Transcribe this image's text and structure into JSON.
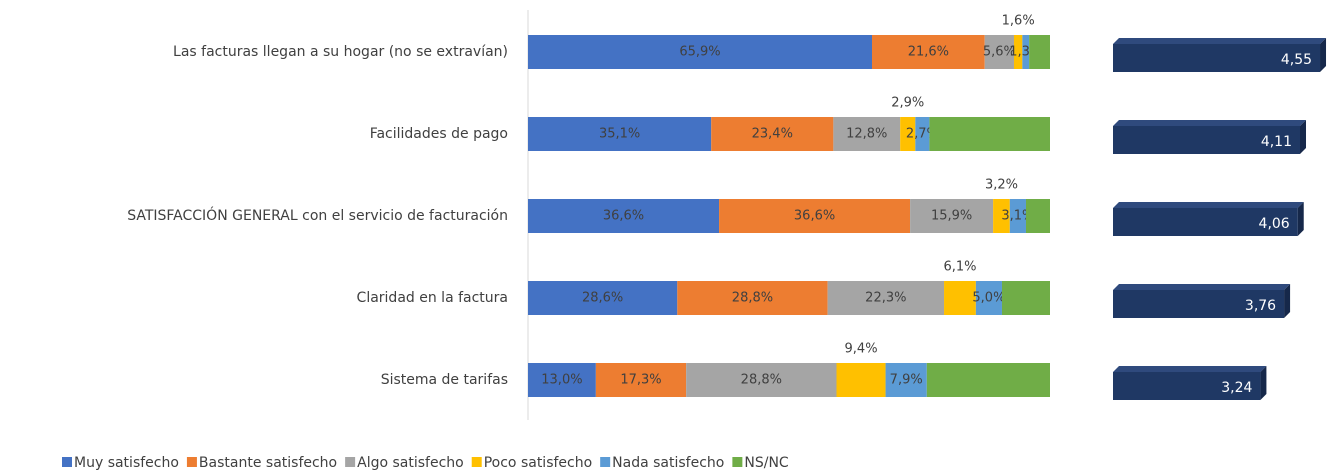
{
  "chart_data": [
    {
      "type": "bar",
      "orientation": "horizontal",
      "stacked": true,
      "categories": [
        "Las facturas llegan a su hogar (no se extravían)",
        "Facilidades de pago",
        "SATISFACCIÓN GENERAL con el servicio de facturación",
        "Claridad en la factura",
        "Sistema de tarifas"
      ],
      "xlim": [
        0,
        100
      ],
      "legend": "bottom",
      "series": [
        {
          "name": "Muy satisfecho",
          "color": "#4472c4",
          "values": [
            65.9,
            35.1,
            36.6,
            28.6,
            13.0
          ],
          "value_labels": [
            "65,9%",
            "35,1%",
            "36,6%",
            "28,6%",
            "13,0%"
          ]
        },
        {
          "name": "Bastante satisfecho",
          "color": "#ed7d31",
          "values": [
            21.6,
            23.4,
            36.6,
            28.8,
            17.3
          ],
          "value_labels": [
            "21,6%",
            "23,4%",
            "36,6%",
            "28,8%",
            "17,3%"
          ]
        },
        {
          "name": "Algo satisfecho",
          "color": "#a5a5a5",
          "values": [
            5.6,
            12.8,
            15.9,
            22.3,
            28.8
          ],
          "value_labels": [
            "5,6%",
            "12,8%",
            "15,9%",
            "22,3%",
            "28,8%"
          ]
        },
        {
          "name": "Poco satisfecho",
          "color": "#ffc000",
          "values": [
            1.6,
            2.9,
            3.2,
            6.1,
            9.4
          ],
          "value_labels": [
            "1,6%",
            "2,9%",
            "3,2%",
            "6,1%",
            "9,4%"
          ]
        },
        {
          "name": "Nada satisfecho",
          "color": "#5b9bd5",
          "values": [
            1.3,
            2.7,
            3.1,
            5.0,
            7.9
          ],
          "value_labels": [
            "1,3%",
            "2,7%",
            "3,1%",
            "5,0%",
            "7,9%"
          ]
        },
        {
          "name": "NS/NC",
          "color": "#70ad47",
          "values": [
            4.0,
            23.1,
            4.6,
            9.2,
            23.6
          ]
        }
      ]
    },
    {
      "type": "bar3d",
      "orientation": "horizontal",
      "xlim": [
        0,
        5
      ],
      "color": "#1f3864",
      "values": [
        4.55,
        4.11,
        4.06,
        3.76,
        3.24
      ],
      "value_labels": [
        "4,55",
        "4,11",
        "4,06",
        "3,76",
        "3,24"
      ]
    }
  ]
}
